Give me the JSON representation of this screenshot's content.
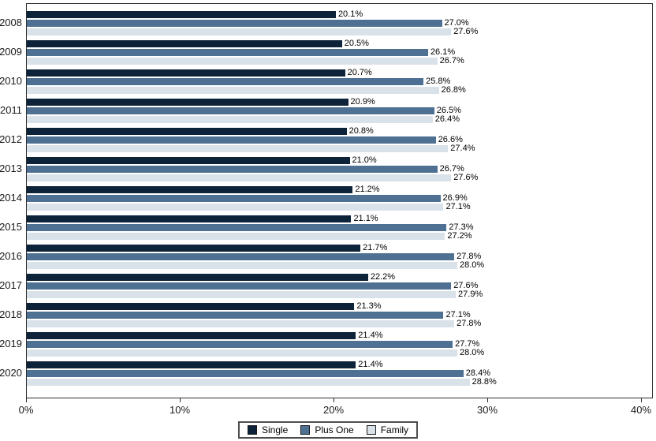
{
  "chart_data": {
    "type": "bar",
    "orientation": "horizontal",
    "title": "",
    "xlabel": "",
    "ylabel": "",
    "xlim": [
      0,
      40
    ],
    "grid": false,
    "legend_position": "bottom",
    "value_suffix": "%",
    "categories": [
      "2008",
      "2009",
      "2010",
      "2011",
      "2012",
      "2013",
      "2014",
      "2015",
      "2016",
      "2017",
      "2018",
      "2019",
      "2020"
    ],
    "series": [
      {
        "name": "Single",
        "color": "#0d2339",
        "values": [
          20.1,
          20.5,
          20.7,
          20.9,
          20.8,
          21.0,
          21.2,
          21.1,
          21.7,
          22.2,
          21.3,
          21.4,
          21.4
        ]
      },
      {
        "name": "Plus One",
        "color": "#4e7193",
        "values": [
          27.0,
          26.1,
          25.8,
          26.5,
          26.6,
          26.7,
          26.9,
          27.3,
          27.8,
          27.6,
          27.1,
          27.7,
          28.4
        ]
      },
      {
        "name": "Family",
        "color": "#d9e1e9",
        "values": [
          27.6,
          26.7,
          26.8,
          26.4,
          27.4,
          27.6,
          27.1,
          27.2,
          28.0,
          27.9,
          27.8,
          28.0,
          28.8
        ]
      }
    ],
    "x_ticks": [
      {
        "value": 0,
        "label": "0%"
      },
      {
        "value": 10,
        "label": "10%"
      },
      {
        "value": 20,
        "label": "20%"
      },
      {
        "value": 30,
        "label": "30%"
      },
      {
        "value": 40,
        "label": "40%"
      }
    ]
  },
  "legend": {
    "items": [
      {
        "label": "Single",
        "color": "#0d2339"
      },
      {
        "label": "Plus One",
        "color": "#4e7193"
      },
      {
        "label": "Family",
        "color": "#d9e1e9"
      }
    ]
  }
}
